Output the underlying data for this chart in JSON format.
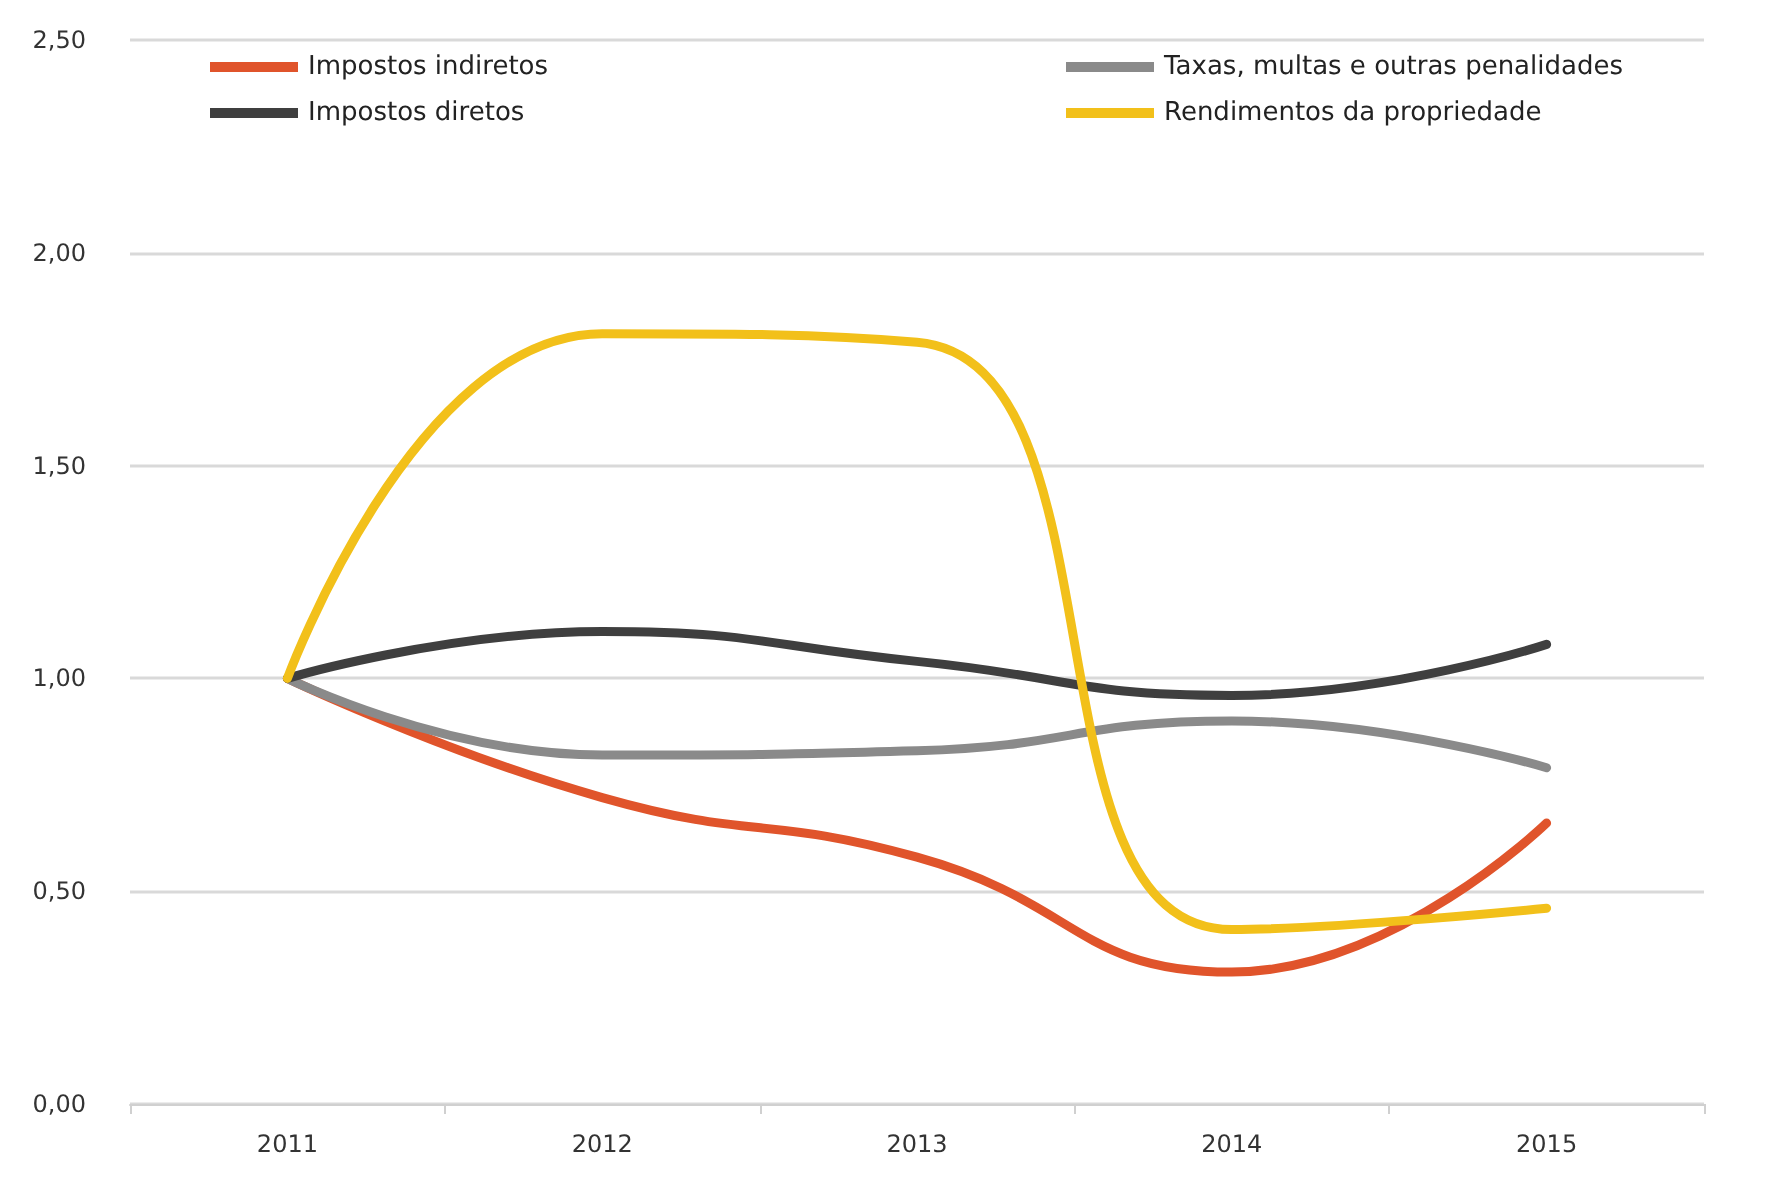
{
  "chart_data": {
    "type": "line",
    "categories": [
      "2011",
      "2012",
      "2013",
      "2014",
      "2015"
    ],
    "series": [
      {
        "name": "Impostos indiretos",
        "color": "#e0542b",
        "values": [
          1.0,
          0.72,
          0.58,
          0.31,
          0.66
        ]
      },
      {
        "name": "Taxas, multas e outras penalidades",
        "color": "#8a8a8a",
        "values": [
          1.0,
          0.82,
          0.83,
          0.9,
          0.79
        ]
      },
      {
        "name": "Impostos diretos",
        "color": "#3f3f3f",
        "values": [
          1.0,
          1.11,
          1.04,
          0.96,
          1.08
        ]
      },
      {
        "name": "Rendimentos da propriedade",
        "color": "#f2c01a",
        "values": [
          1.0,
          1.81,
          1.79,
          0.41,
          0.46
        ]
      }
    ],
    "ylim": [
      0,
      2.5
    ],
    "yticks": [
      {
        "value": 0,
        "label": "0,00"
      },
      {
        "value": 0.5,
        "label": "0,50"
      },
      {
        "value": 1,
        "label": "1,00"
      },
      {
        "value": 1.5,
        "label": "1,50"
      },
      {
        "value": 2,
        "label": "2,00"
      },
      {
        "value": 2.5,
        "label": "2,50"
      }
    ],
    "grid": "y",
    "legend": "top",
    "marker": "none",
    "line_style": "solid"
  }
}
